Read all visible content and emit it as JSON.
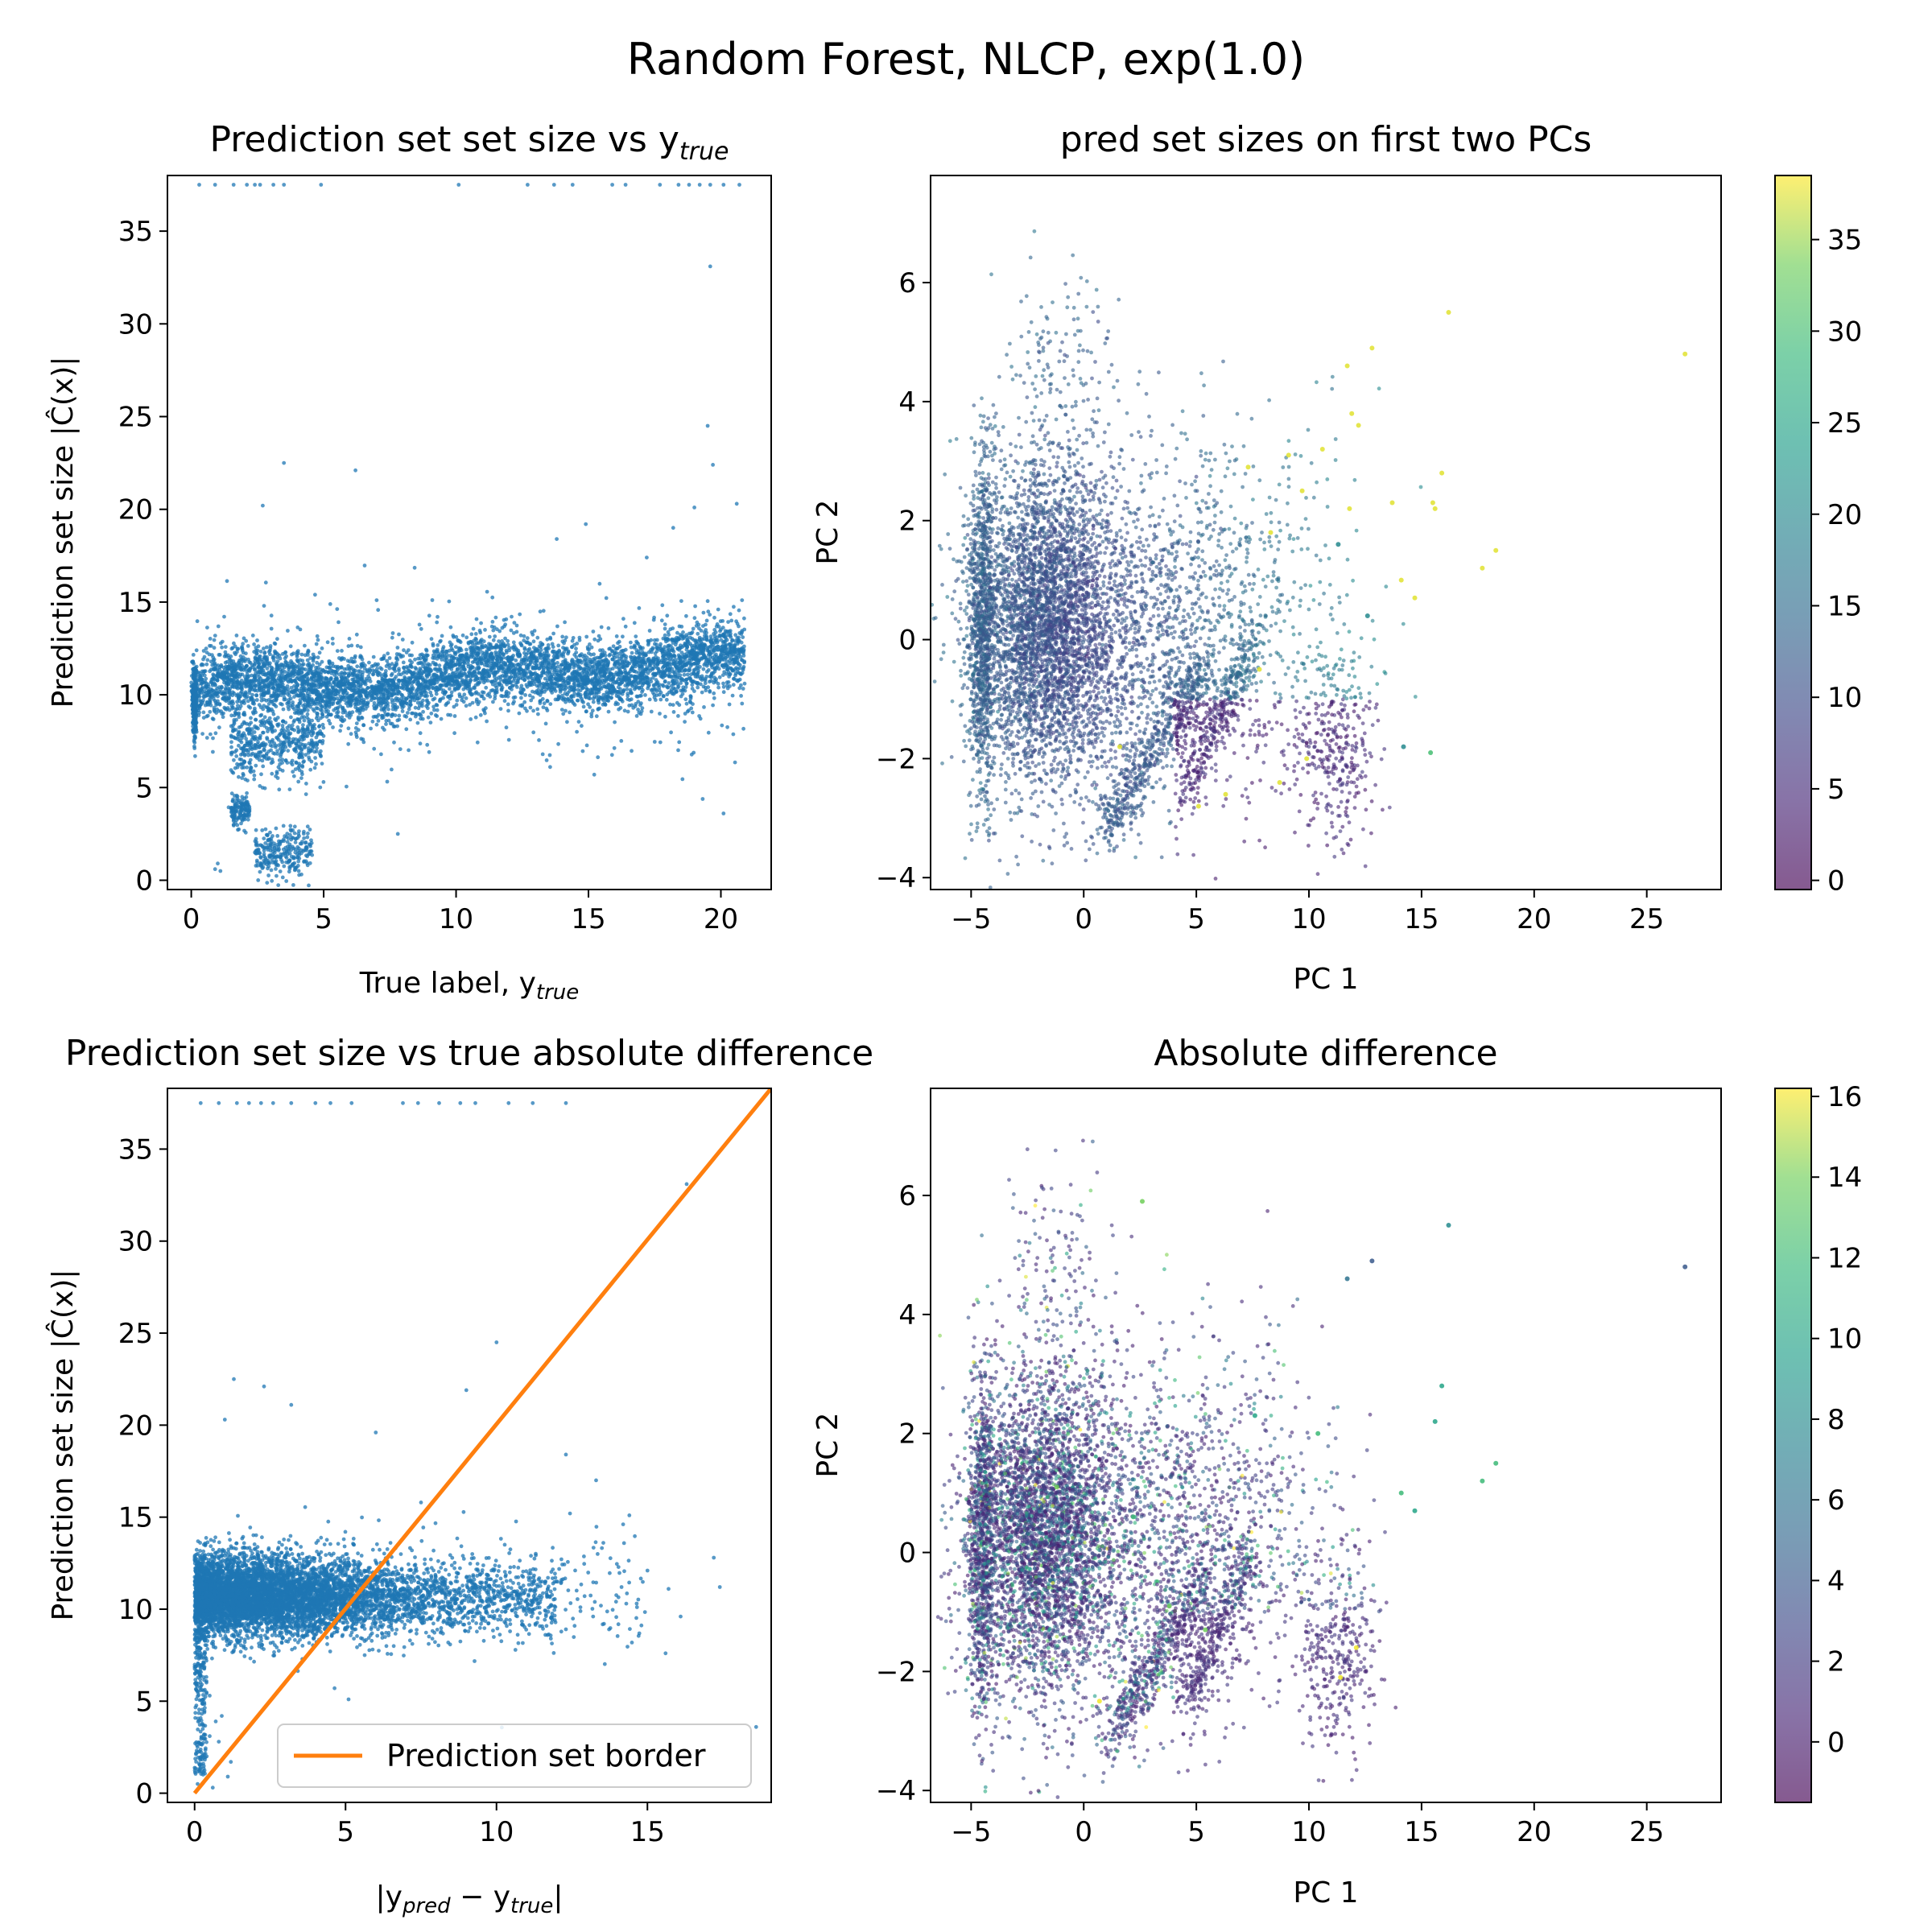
{
  "figure": {
    "suptitle": "Random Forest, NLCP, exp(1.0)"
  },
  "chart_data": [
    {
      "id": "top-left",
      "type": "scatter",
      "title": "Prediction set set size vs y",
      "title_sub": "true",
      "xlabel": "True label, y",
      "xlabel_sub": "true",
      "ylabel": "Prediction set size |Ĉ(x)|",
      "xlim": [
        -0.9,
        21.9
      ],
      "ylim": [
        -0.5,
        38.0
      ],
      "xticks": [
        0,
        5,
        10,
        15,
        20
      ],
      "yticks": [
        0,
        5,
        10,
        15,
        20,
        25,
        30,
        35
      ],
      "color": "#1f77b4",
      "series": [
        {
          "points": [
            [
              0.1,
              10.2
            ],
            [
              0.1,
              11.0
            ],
            [
              0.1,
              9.4
            ],
            [
              0.2,
              12.4
            ],
            [
              0.2,
              8.0
            ],
            [
              0.6,
              9.6
            ],
            [
              0.8,
              10.6
            ],
            [
              0.9,
              0.6
            ],
            [
              1.0,
              0.9
            ],
            [
              1.1,
              0.5
            ],
            [
              1.2,
              8.8
            ],
            [
              1.5,
              3.9
            ],
            [
              1.6,
              3.2
            ],
            [
              1.8,
              4.3
            ],
            [
              2.0,
              3.7
            ],
            [
              2.2,
              7.4
            ],
            [
              2.4,
              1.5
            ],
            [
              2.6,
              6.9
            ],
            [
              2.8,
              2.0
            ],
            [
              3.0,
              1.3
            ],
            [
              3.2,
              2.8
            ],
            [
              3.4,
              1.1
            ],
            [
              3.6,
              1.6
            ],
            [
              3.8,
              2.3
            ],
            [
              4.0,
              1.4
            ],
            [
              4.4,
              2.9
            ],
            [
              2.7,
              20.2
            ],
            [
              3.5,
              22.5
            ],
            [
              6.2,
              22.1
            ],
            [
              7.8,
              2.5
            ],
            [
              7.0,
              15.1
            ],
            [
              9.3,
              14.2
            ],
            [
              13.8,
              18.4
            ],
            [
              14.9,
              19.2
            ],
            [
              17.2,
              17.4
            ],
            [
              18.2,
              19.0
            ],
            [
              19.0,
              20.1
            ],
            [
              19.6,
              33.1
            ],
            [
              19.5,
              24.5
            ],
            [
              19.7,
              22.4
            ],
            [
              20.6,
              20.3
            ],
            [
              20.1,
              3.6
            ],
            [
              20.8,
              15.1
            ],
            [
              20.4,
              14.0
            ],
            [
              19.9,
              14.6
            ],
            [
              0.3,
              37.5
            ],
            [
              0.9,
              37.5
            ],
            [
              1.6,
              37.5
            ],
            [
              2.1,
              37.5
            ],
            [
              2.4,
              37.5
            ],
            [
              2.6,
              37.5
            ],
            [
              3.1,
              37.5
            ],
            [
              3.5,
              37.5
            ],
            [
              4.9,
              37.5
            ],
            [
              10.1,
              37.5
            ],
            [
              12.7,
              37.5
            ],
            [
              13.7,
              37.5
            ],
            [
              14.4,
              37.5
            ],
            [
              15.9,
              37.5
            ],
            [
              16.4,
              37.5
            ],
            [
              17.7,
              37.5
            ],
            [
              18.4,
              37.5
            ],
            [
              18.8,
              37.5
            ],
            [
              19.2,
              37.5
            ],
            [
              19.6,
              37.5
            ],
            [
              20.1,
              37.5
            ],
            [
              20.7,
              37.5
            ]
          ]
        }
      ]
    },
    {
      "id": "top-right",
      "type": "scatter",
      "title": "pred set sizes on first two PCs",
      "xlabel": "PC 1",
      "ylabel": "PC 2",
      "xlim": [
        -6.8,
        28.3
      ],
      "ylim": [
        -4.2,
        7.8
      ],
      "xticks": [
        -5,
        0,
        5,
        10,
        15,
        20,
        25
      ],
      "yticks": [
        -4,
        -2,
        0,
        2,
        4,
        6
      ],
      "colorbar": {
        "colormap": "viridis",
        "range": [
          -0.5,
          38.5
        ],
        "ticks": [
          0,
          5,
          10,
          15,
          20,
          25,
          30,
          35
        ]
      },
      "highlight_points": [
        [
          26.7,
          4.8,
          37.5
        ],
        [
          16.2,
          5.5,
          37.5
        ],
        [
          12.8,
          4.9,
          37.5
        ],
        [
          11.7,
          4.6,
          37.5
        ],
        [
          11.9,
          3.8,
          37.5
        ],
        [
          12.2,
          3.6,
          37.5
        ],
        [
          15.9,
          2.8,
          37.5
        ],
        [
          15.6,
          2.2,
          37.5
        ],
        [
          15.5,
          2.3,
          37.5
        ],
        [
          18.3,
          1.5,
          37.5
        ],
        [
          17.7,
          1.2,
          37.5
        ],
        [
          14.1,
          1.0,
          37.5
        ],
        [
          14.7,
          0.7,
          37.5
        ],
        [
          13.7,
          2.3,
          37.5
        ],
        [
          11.8,
          2.2,
          37.5
        ],
        [
          10.6,
          3.2,
          37.5
        ],
        [
          9.1,
          3.1,
          37.5
        ],
        [
          9.7,
          2.5,
          37.5
        ],
        [
          8.3,
          1.8,
          37.5
        ],
        [
          7.8,
          -0.5,
          37.5
        ],
        [
          9.9,
          -2.0,
          37.5
        ],
        [
          8.7,
          -2.4,
          37.5
        ],
        [
          1.6,
          -1.8,
          37.5
        ],
        [
          6.3,
          -2.6,
          37.5
        ],
        [
          5.1,
          -2.8,
          37.5
        ],
        [
          7.3,
          2.9,
          37.5
        ],
        [
          15.4,
          -1.9,
          30.0
        ],
        [
          14.2,
          -1.8,
          20.0
        ],
        [
          12.6,
          0.4,
          20.0
        ],
        [
          11.3,
          1.6,
          20.0
        ]
      ]
    },
    {
      "id": "bottom-left",
      "type": "scatter",
      "title": "Prediction set size vs true absolute difference",
      "xlabel": "|y",
      "xlabel_sub1": "pred",
      "xlabel_mid": " − y",
      "xlabel_sub2": "true",
      "xlabel_end": "|",
      "ylabel": "Prediction set size |Ĉ(x)|",
      "xlim": [
        -0.9,
        19.1
      ],
      "ylim": [
        -0.5,
        38.3
      ],
      "xticks": [
        0,
        5,
        10,
        15
      ],
      "yticks": [
        0,
        5,
        10,
        15,
        20,
        25,
        30,
        35
      ],
      "color": "#1f77b4",
      "series": [
        {
          "points": [
            [
              0.1,
              0.5
            ],
            [
              0.2,
              1.4
            ],
            [
              0.4,
              2.0
            ],
            [
              0.5,
              3.1
            ],
            [
              0.7,
              3.9
            ],
            [
              0.9,
              4.2
            ],
            [
              0.3,
              6.3
            ],
            [
              0.1,
              7.5
            ],
            [
              0.5,
              5.3
            ],
            [
              0.8,
              2.8
            ],
            [
              1.2,
              1.7
            ],
            [
              1.1,
              0.9
            ],
            [
              0.6,
              0.3
            ],
            [
              1.3,
              22.5
            ],
            [
              1.0,
              20.3
            ],
            [
              2.3,
              22.1
            ],
            [
              3.2,
              21.1
            ],
            [
              6.0,
              19.6
            ],
            [
              5.1,
              5.1
            ],
            [
              10.0,
              24.5
            ],
            [
              9.0,
              21.9
            ],
            [
              12.3,
              18.4
            ],
            [
              13.3,
              17.0
            ],
            [
              14.4,
              15.1
            ],
            [
              15.0,
              12.1
            ],
            [
              16.3,
              33.1
            ],
            [
              15.7,
              11.1
            ],
            [
              16.1,
              9.6
            ],
            [
              17.2,
              12.8
            ],
            [
              17.4,
              11.2
            ],
            [
              18.6,
              3.6
            ],
            [
              15.6,
              7.6
            ],
            [
              14.3,
              10.3
            ],
            [
              13.2,
              9.6
            ],
            [
              7.5,
              15.8
            ],
            [
              0.2,
              37.5
            ],
            [
              0.8,
              37.5
            ],
            [
              1.4,
              37.5
            ],
            [
              1.8,
              37.5
            ],
            [
              2.2,
              37.5
            ],
            [
              2.6,
              37.5
            ],
            [
              3.2,
              37.5
            ],
            [
              4.0,
              37.5
            ],
            [
              4.5,
              37.5
            ],
            [
              5.2,
              37.5
            ],
            [
              6.9,
              37.5
            ],
            [
              7.4,
              37.5
            ],
            [
              8.1,
              37.5
            ],
            [
              8.8,
              37.5
            ],
            [
              9.3,
              37.5
            ],
            [
              10.4,
              37.5
            ],
            [
              11.2,
              37.5
            ],
            [
              12.3,
              37.5
            ]
          ]
        },
        {
          "name": "Prediction set border",
          "type": "line",
          "color": "#ff7f0e",
          "points": [
            [
              0,
              0
            ],
            [
              19.1,
              38.3
            ]
          ]
        }
      ],
      "legend": {
        "position": "lower right",
        "entries": [
          "Prediction set border"
        ]
      }
    },
    {
      "id": "bottom-right",
      "type": "scatter",
      "title": "Absolute difference",
      "xlabel": "PC 1",
      "ylabel": "PC 2",
      "xlim": [
        -6.8,
        28.3
      ],
      "ylim": [
        -4.2,
        7.8
      ],
      "xticks": [
        -5,
        0,
        5,
        10,
        15,
        20,
        25
      ],
      "yticks": [
        -4,
        -2,
        0,
        2,
        4,
        6
      ],
      "colorbar": {
        "colormap": "viridis",
        "range": [
          -1.5,
          16.2
        ],
        "ticks": [
          0,
          2,
          4,
          6,
          8,
          10,
          12,
          14,
          16
        ]
      },
      "highlight_points": [
        [
          26.7,
          4.8,
          4.0
        ],
        [
          16.2,
          5.5,
          8.0
        ],
        [
          12.8,
          4.9,
          4.0
        ],
        [
          11.7,
          4.6,
          6.0
        ],
        [
          15.9,
          2.8,
          10.0
        ],
        [
          15.6,
          2.2,
          10.0
        ],
        [
          18.3,
          1.5,
          12.0
        ],
        [
          17.7,
          1.2,
          12.0
        ],
        [
          14.1,
          1.0,
          12.0
        ],
        [
          14.7,
          0.7,
          10.0
        ],
        [
          12.1,
          -1.6,
          16.0
        ],
        [
          11.4,
          -2.1,
          16.0
        ],
        [
          2.6,
          5.9,
          14.0
        ],
        [
          0.7,
          -2.5,
          16.0
        ],
        [
          7.6,
          2.3,
          10.0
        ],
        [
          10.4,
          2.0,
          12.0
        ],
        [
          3.8,
          -0.9,
          14.0
        ],
        [
          5.4,
          -1.3,
          14.0
        ],
        [
          2.2,
          0.6,
          12.0
        ],
        [
          -1.2,
          1.1,
          14.0
        ]
      ]
    }
  ]
}
